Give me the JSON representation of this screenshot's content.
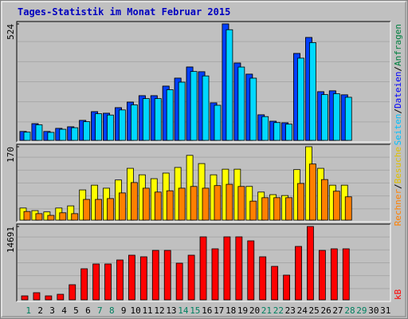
{
  "chart_data": [
    {
      "type": "bar",
      "title": "Tages-Statistik im Monat Februar 2015",
      "categories": [
        "1",
        "2",
        "3",
        "4",
        "5",
        "6",
        "7",
        "8",
        "9",
        "10",
        "11",
        "12",
        "13",
        "14",
        "15",
        "16",
        "17",
        "18",
        "19",
        "20",
        "21",
        "22",
        "23",
        "24",
        "25",
        "26",
        "27",
        "28",
        "29",
        "30",
        "31"
      ],
      "category_colors": [
        "#008060",
        "#000000",
        "#000000",
        "#000000",
        "#000000",
        "#000000",
        "#008060",
        "#008060",
        "#000000",
        "#000000",
        "#000000",
        "#000000",
        "#000000",
        "#008060",
        "#008060",
        "#000000",
        "#000000",
        "#000000",
        "#000000",
        "#000000",
        "#008060",
        "#008060",
        "#000000",
        "#000000",
        "#000000",
        "#000000",
        "#000000",
        "#008060",
        "#008060",
        "#000000",
        "#000000"
      ],
      "legend_separator": "/",
      "ylim": [
        0,
        524
      ],
      "yticks": [
        524
      ],
      "series": [
        {
          "name": "Anfragen",
          "color": "#00805c",
          "values": [
            40,
            75,
            40,
            54,
            61,
            90,
            129,
            122,
            147,
            172,
            201,
            201,
            244,
            280,
            330,
            309,
            169,
            524,
            348,
            298,
            115,
            86,
            79,
            391,
            463,
            219,
            223,
            205,
            null,
            null,
            null
          ]
        },
        {
          "name": "Dateien",
          "color": "#0040ff",
          "values": [
            40,
            75,
            40,
            54,
            61,
            90,
            129,
            122,
            147,
            172,
            201,
            201,
            244,
            280,
            330,
            309,
            169,
            524,
            348,
            298,
            115,
            86,
            79,
            391,
            463,
            219,
            223,
            205,
            null,
            null,
            null
          ]
        },
        {
          "name": "Seiten",
          "color": "#00d8ff",
          "values": [
            37,
            70,
            36,
            50,
            57,
            84,
            120,
            114,
            137,
            160,
            188,
            188,
            228,
            262,
            310,
            290,
            158,
            498,
            330,
            280,
            107,
            80,
            73,
            370,
            440,
            206,
            210,
            194,
            null,
            null,
            null
          ]
        }
      ]
    },
    {
      "type": "bar",
      "ylim": [
        0,
        170
      ],
      "yticks": [
        170
      ],
      "series": [
        {
          "name": "Besuche",
          "color": "#ffff00",
          "values": [
            28,
            22,
            19,
            28,
            33,
            70,
            81,
            74,
            93,
            120,
            105,
            96,
            109,
            122,
            150,
            131,
            105,
            118,
            118,
            78,
            65,
            59,
            57,
            117,
            170,
            120,
            81,
            81,
            null,
            null,
            null
          ]
        },
        {
          "name": "Rechner",
          "color": "#ff8000",
          "values": [
            20,
            15,
            11,
            17,
            15,
            48,
            48,
            50,
            63,
            87,
            74,
            65,
            68,
            74,
            78,
            74,
            80,
            83,
            78,
            44,
            52,
            52,
            52,
            85,
            130,
            94,
            67,
            54,
            null,
            null,
            null
          ]
        }
      ]
    },
    {
      "type": "bar",
      "ylim": [
        0,
        14691
      ],
      "yticks": [
        14691
      ],
      "series": [
        {
          "name": "kB",
          "color": "#ff0000",
          "values": [
            799,
            1437,
            799,
            1118,
            3034,
            6228,
            7187,
            7187,
            7985,
            8943,
            8624,
            9901,
            9901,
            7346,
            8943,
            12616,
            10221,
            12616,
            12616,
            11818,
            8624,
            6707,
            4951,
            10700,
            14691,
            9901,
            10221,
            10221,
            null,
            null,
            null
          ]
        }
      ]
    }
  ]
}
